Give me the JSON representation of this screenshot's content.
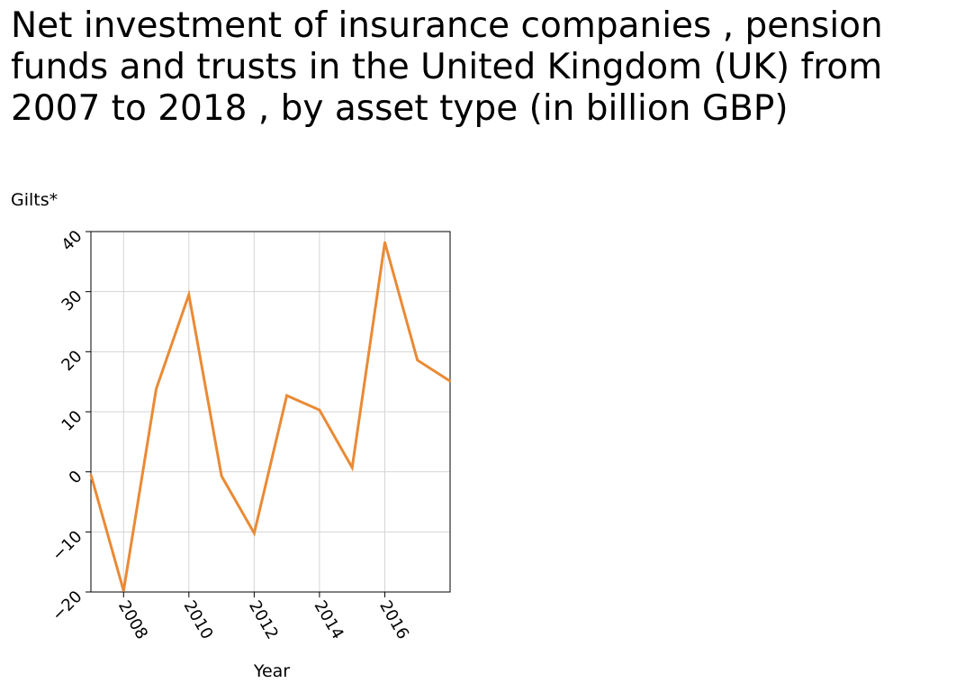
{
  "chart_data": {
    "type": "line",
    "title": "Net investment of insurance companies , pension funds and trusts in the United Kingdom (UK) from 2007 to 2018 , by asset type (in billion GBP)",
    "xlabel": "Year",
    "ylabel": "Gilts*",
    "xlim": [
      2007,
      2018
    ],
    "ylim": [
      -20,
      40
    ],
    "x_ticks": [
      2008,
      2010,
      2012,
      2014,
      2016
    ],
    "y_ticks": [
      -20,
      -10,
      0,
      10,
      20,
      30,
      40
    ],
    "x_tick_labels": [
      "2008",
      "2010",
      "2012",
      "2014",
      "2016"
    ],
    "y_tick_labels": [
      "−20",
      "−10",
      "0",
      "10",
      "20",
      "30",
      "40"
    ],
    "grid": true,
    "line_color": "#ea8a35",
    "series": [
      {
        "x": [
          2007,
          2008,
          2009,
          2010,
          2011,
          2012,
          2013,
          2014,
          2015,
          2016,
          2017,
          2018
        ],
        "values": [
          -0.5,
          -19.8,
          13.8,
          29.5,
          -0.7,
          -10.2,
          12.7,
          10.3,
          0.7,
          38.2,
          18.6,
          15.1
        ]
      }
    ]
  }
}
